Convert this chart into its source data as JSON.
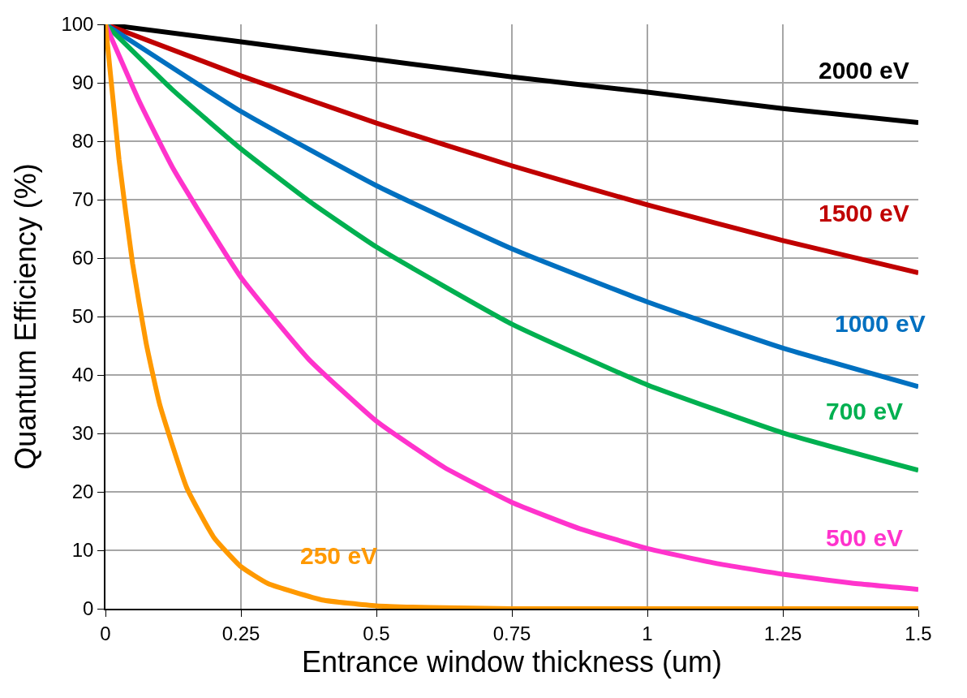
{
  "chart_data": {
    "type": "line",
    "xlabel": "Entrance window thickness (um)",
    "ylabel": "Quantum Efficiency (%)",
    "series": [
      {
        "color": "#000000",
        "x": [
          0,
          0.25,
          0.5,
          0.75,
          1,
          1.25,
          1.5
        ],
        "values": [
          100,
          97,
          94,
          91,
          88.4,
          85.6,
          83.2
        ]
      },
      {
        "color": "#c00000",
        "x": [
          0,
          0.25,
          0.5,
          0.75,
          1,
          1.25,
          1.5
        ],
        "values": [
          100,
          91.2,
          83.1,
          75.8,
          69.1,
          63,
          57.5
        ]
      },
      {
        "color": "#0070c0",
        "x": [
          0,
          0.25,
          0.5,
          0.75,
          1,
          1.25,
          1.5
        ],
        "values": [
          100,
          85.1,
          72.4,
          61.6,
          52.5,
          44.6,
          38
        ]
      },
      {
        "color": "#00b050",
        "x": [
          0,
          0.125,
          0.25,
          0.375,
          0.5,
          0.75,
          1,
          1.25,
          1.5
        ],
        "values": [
          100,
          88.7,
          78.7,
          69.8,
          61.9,
          48.7,
          38.3,
          30.1,
          23.7
        ]
      },
      {
        "color": "#ff33cc",
        "x": [
          0,
          0.0625,
          0.125,
          0.25,
          0.375,
          0.5,
          0.625,
          0.75,
          0.875,
          1,
          1.125,
          1.25,
          1.375,
          1.5
        ],
        "values": [
          100,
          86.8,
          75.3,
          56.7,
          42.7,
          32.1,
          24.2,
          18.2,
          13.7,
          10.3,
          7.8,
          5.9,
          4.4,
          3.3
        ]
      },
      {
        "color": "#ff9900",
        "x": [
          0,
          0.025,
          0.05,
          0.075,
          0.1,
          0.15,
          0.2,
          0.25,
          0.3,
          0.4,
          0.5,
          0.6,
          0.75,
          1,
          1.5
        ],
        "values": [
          100,
          76.9,
          59.1,
          45.5,
          35,
          20.7,
          12.2,
          7.2,
          4.3,
          1.5,
          0.5,
          0.2,
          0,
          0,
          0
        ]
      }
    ],
    "annotations": [
      {
        "text": "2000 eV",
        "x": 1.4,
        "y": 84.1
      },
      {
        "text": "1500 eV",
        "x": 1.4,
        "y": 59.7
      },
      {
        "text": "1000 eV",
        "x": 1.43,
        "y": 40.7
      },
      {
        "text": "700 eV",
        "x": 1.4,
        "y": 25.8
      },
      {
        "text": "500 eV",
        "x": 1.4,
        "y": 4.1
      },
      {
        "text": "250 eV",
        "x": 0.43,
        "y": 1.1
      }
    ],
    "xlim": [
      0,
      1.5
    ],
    "xticks": [
      0,
      0.25,
      0.5,
      0.75,
      1,
      1.25,
      1.5
    ],
    "ylim": [
      0,
      100
    ],
    "yticks": [
      0,
      10,
      20,
      30,
      40,
      50,
      60,
      70,
      80,
      90,
      100
    ],
    "grid": true,
    "marker": "none",
    "line_style": "solid"
  }
}
